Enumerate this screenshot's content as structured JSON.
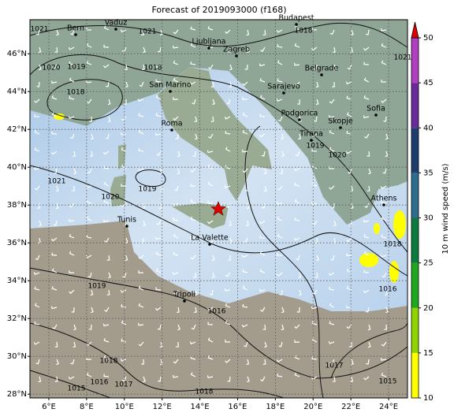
{
  "title": "Forecast of 2019093000 (f168)",
  "map": {
    "xlim": [
      5,
      25
    ],
    "ylim": [
      27.8,
      47.8
    ],
    "grid": true,
    "xticks": [
      {
        "value": 6,
        "label": "6°E"
      },
      {
        "value": 8,
        "label": "8°E"
      },
      {
        "value": 10,
        "label": "10°E"
      },
      {
        "value": 12,
        "label": "12°E"
      },
      {
        "value": 14,
        "label": "14°E"
      },
      {
        "value": 16,
        "label": "16°E"
      },
      {
        "value": 18,
        "label": "18°E"
      },
      {
        "value": 20,
        "label": "20°E"
      },
      {
        "value": 22,
        "label": "22°E"
      },
      {
        "value": 24,
        "label": "24°E"
      }
    ],
    "yticks": [
      {
        "value": 28,
        "label": "28°N"
      },
      {
        "value": 30,
        "label": "30°N"
      },
      {
        "value": 32,
        "label": "32°N"
      },
      {
        "value": 34,
        "label": "34°N"
      },
      {
        "value": 36,
        "label": "36°N"
      },
      {
        "value": 38,
        "label": "38°N"
      },
      {
        "value": 40,
        "label": "40°N"
      },
      {
        "value": 42,
        "label": "42°N"
      },
      {
        "value": 44,
        "label": "44°N"
      },
      {
        "value": 46,
        "label": "46°N"
      }
    ]
  },
  "cities": [
    "Bern",
    "Vaduz",
    "Budapest",
    "Ljubljana",
    "Zagreb",
    "Belgrade",
    "Sarajevo",
    "San Marino",
    "Roma",
    "Podgorica",
    "Skopje",
    "Sofia",
    "Tirana",
    "Athens",
    "Tunis",
    "La Valette",
    "Tripoli"
  ],
  "isobar_labels": [
    "1021",
    "1018",
    "1021",
    "1020",
    "1019",
    "1018",
    "1018",
    "1021",
    "1019",
    "1020",
    "1021",
    "1020",
    "1019",
    "1018",
    "1016",
    "1019",
    "1016",
    "1017",
    "1018",
    "1016",
    "1017",
    "1015",
    "1015",
    "1018"
  ],
  "colorbar": {
    "label": "10 m wind speed (m/s)",
    "ylim": [
      10,
      50
    ],
    "ticks": [
      10,
      15,
      20,
      25,
      30,
      35,
      40,
      45,
      50
    ],
    "colors": [
      "#ffff00",
      "#8fd400",
      "#1fa81f",
      "#0d7a3e",
      "#2e6d8e",
      "#1c3d6e",
      "#6a2a9a",
      "#b040c0"
    ]
  }
}
